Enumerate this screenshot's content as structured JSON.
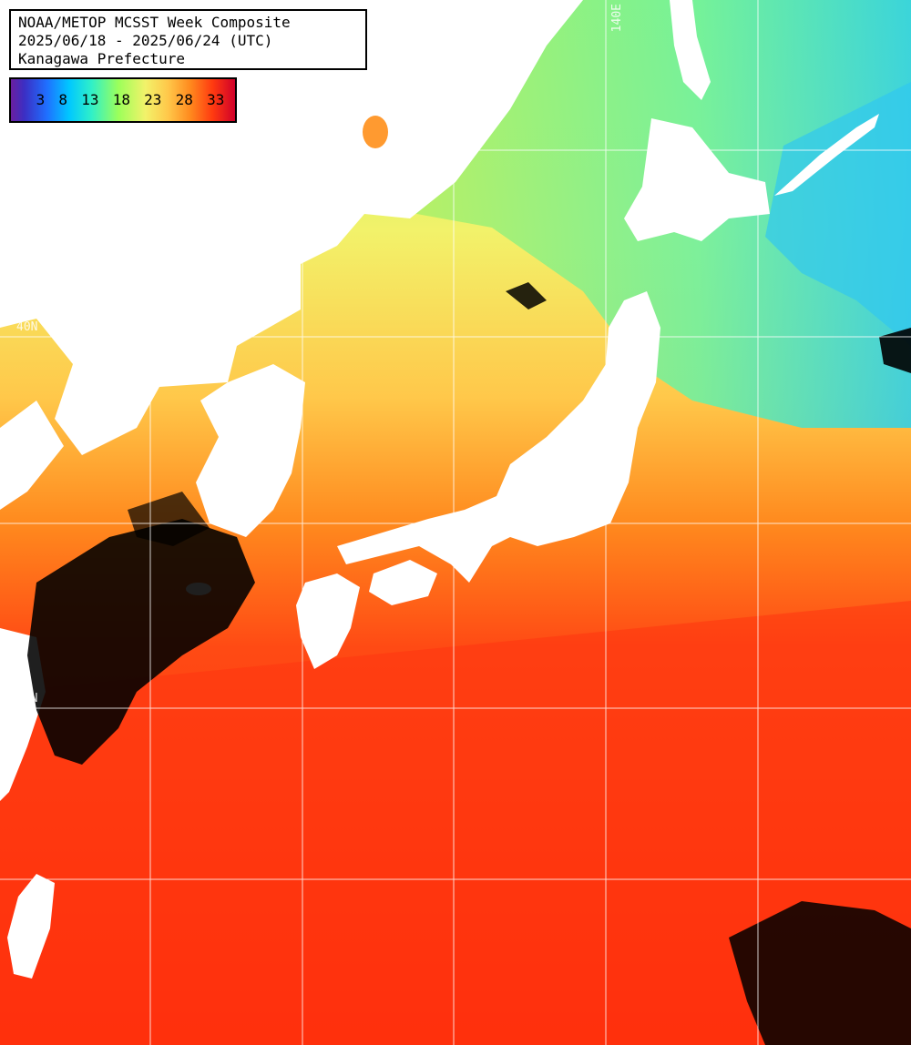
{
  "title": {
    "line1": "NOAA/METOP MCSST Week Composite",
    "line2": "2025/06/18 - 2025/06/24 (UTC)",
    "line3": "Kanagawa Prefecture"
  },
  "legend": {
    "labels": [
      "3",
      "8",
      "13",
      "18",
      "23",
      "28",
      "33"
    ]
  },
  "grid": {
    "lat_labels": [
      "40N",
      "30N"
    ],
    "lon_labels": [
      "140E"
    ]
  },
  "colors": {
    "cold": "#1f6fff",
    "cool": "#30f0c8",
    "mild": "#9cff5a",
    "warm": "#f2e67a",
    "hot": "#ff8a1e",
    "very_hot": "#ff3a10",
    "land": "#ffffff",
    "cloud": "#000000"
  }
}
